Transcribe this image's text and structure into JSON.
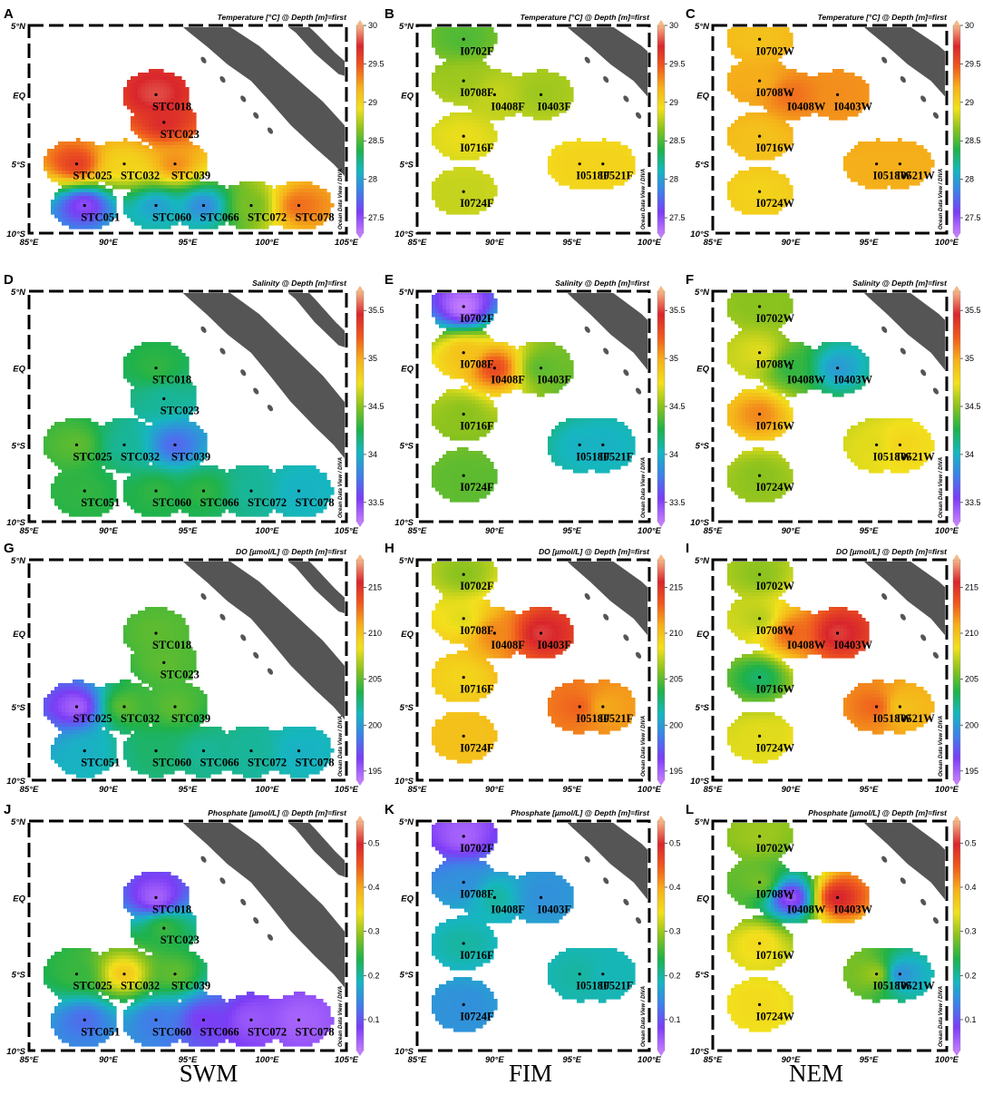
{
  "seasons": [
    "SWM",
    "FIM",
    "NEM"
  ],
  "watermark": "Ocean Data View / DIVA",
  "axes": {
    "lon_ticks": [
      "85°E",
      "90°E",
      "95°E",
      "100°E",
      "105°E"
    ],
    "lat_ticks": [
      "5°N",
      "EQ",
      "5°S",
      "10°S"
    ]
  },
  "colorscale": [
    "#c27bff",
    "#7b3df5",
    "#3f7fe8",
    "#16b6c0",
    "#1fb24a",
    "#8ac21e",
    "#f2e01c",
    "#f5b21a",
    "#ef5a1e",
    "#d9262c",
    "#f5b888"
  ],
  "variables": [
    {
      "title": "Temperature [°C] @ Depth [m]=first",
      "ticks": [
        "27.5",
        "28",
        "28.5",
        "29",
        "29.5",
        "30"
      ],
      "range": [
        27.3,
        30
      ]
    },
    {
      "title": "Salinity @ Depth [m]=first",
      "ticks": [
        "33.5",
        "34",
        "34.5",
        "35",
        "35.5"
      ],
      "range": [
        33.3,
        35.7
      ]
    },
    {
      "title": "DO [µmol/L] @ Depth [m]=first",
      "ticks": [
        "195",
        "200",
        "205",
        "210",
        "215"
      ],
      "range": [
        194,
        218
      ]
    },
    {
      "title": "Phosphate [µmol/L] @ Depth [m]=first",
      "ticks": [
        "0.1",
        "0.2",
        "0.3",
        "0.4",
        "0.5"
      ],
      "range": [
        0.03,
        0.55
      ]
    }
  ],
  "panels": [
    {
      "label": "A",
      "season": "SWM",
      "variable": 0,
      "lon_range": [
        85,
        105
      ],
      "stations": [
        {
          "name": "STC018",
          "lon": 93.0,
          "lat": 0.0,
          "v": 29.8
        },
        {
          "name": "STC023",
          "lon": 93.5,
          "lat": -2.0,
          "v": 29.7
        },
        {
          "name": "STC025",
          "lon": 88.0,
          "lat": -5.0,
          "v": 29.6
        },
        {
          "name": "STC032",
          "lon": 91.0,
          "lat": -5.0,
          "v": 29.0
        },
        {
          "name": "STC039",
          "lon": 94.2,
          "lat": -5.0,
          "v": 29.3
        },
        {
          "name": "STC051",
          "lon": 88.5,
          "lat": -8.0,
          "v": 27.5
        },
        {
          "name": "STC060",
          "lon": 93.0,
          "lat": -8.0,
          "v": 28.0
        },
        {
          "name": "STC066",
          "lon": 96.0,
          "lat": -8.0,
          "v": 27.9
        },
        {
          "name": "STC072",
          "lon": 99.0,
          "lat": -8.0,
          "v": 28.6
        },
        {
          "name": "STC078",
          "lon": 102.0,
          "lat": -8.0,
          "v": 29.4
        }
      ]
    },
    {
      "label": "B",
      "season": "FIM",
      "variable": 0,
      "lon_range": [
        85,
        100
      ],
      "stations": [
        {
          "name": "I0702F",
          "lon": 88.0,
          "lat": 4.0,
          "v": 28.5
        },
        {
          "name": "I0708F",
          "lon": 88.0,
          "lat": 1.0,
          "v": 28.7
        },
        {
          "name": "I0408F",
          "lon": 90.0,
          "lat": 0.0,
          "v": 28.8
        },
        {
          "name": "I0403F",
          "lon": 93.0,
          "lat": 0.0,
          "v": 28.7
        },
        {
          "name": "I0716F",
          "lon": 88.0,
          "lat": -3.0,
          "v": 28.9
        },
        {
          "name": "I0518F",
          "lon": 95.5,
          "lat": -5.0,
          "v": 29.0
        },
        {
          "name": "I0521F",
          "lon": 97.0,
          "lat": -5.0,
          "v": 29.0
        },
        {
          "name": "I0724F",
          "lon": 88.0,
          "lat": -7.0,
          "v": 28.8
        }
      ]
    },
    {
      "label": "C",
      "season": "NEM",
      "variable": 0,
      "lon_range": [
        85,
        100
      ],
      "stations": [
        {
          "name": "I0702W",
          "lon": 88.0,
          "lat": 4.0,
          "v": 29.1
        },
        {
          "name": "I0708W",
          "lon": 88.0,
          "lat": 1.0,
          "v": 29.2
        },
        {
          "name": "I0408W",
          "lon": 90.0,
          "lat": 0.0,
          "v": 29.4
        },
        {
          "name": "I0403W",
          "lon": 93.0,
          "lat": 0.0,
          "v": 29.3
        },
        {
          "name": "I0716W",
          "lon": 88.0,
          "lat": -3.0,
          "v": 29.1
        },
        {
          "name": "I0518W",
          "lon": 95.5,
          "lat": -5.0,
          "v": 29.2
        },
        {
          "name": "I0521W",
          "lon": 97.0,
          "lat": -5.0,
          "v": 29.2
        },
        {
          "name": "I0724W",
          "lon": 88.0,
          "lat": -7.0,
          "v": 29.0
        }
      ]
    },
    {
      "label": "D",
      "season": "SWM",
      "variable": 1,
      "lon_range": [
        85,
        105
      ],
      "stations": [
        {
          "name": "STC018",
          "lon": 93.0,
          "lat": 0.0,
          "v": 34.3
        },
        {
          "name": "STC023",
          "lon": 93.5,
          "lat": -2.0,
          "v": 34.1
        },
        {
          "name": "STC025",
          "lon": 88.0,
          "lat": -5.0,
          "v": 34.4
        },
        {
          "name": "STC032",
          "lon": 91.0,
          "lat": -5.0,
          "v": 34.1
        },
        {
          "name": "STC039",
          "lon": 94.2,
          "lat": -5.0,
          "v": 33.7
        },
        {
          "name": "STC051",
          "lon": 88.5,
          "lat": -8.0,
          "v": 34.3
        },
        {
          "name": "STC060",
          "lon": 93.0,
          "lat": -8.0,
          "v": 34.3
        },
        {
          "name": "STC066",
          "lon": 96.0,
          "lat": -8.0,
          "v": 34.3
        },
        {
          "name": "STC072",
          "lon": 99.0,
          "lat": -8.0,
          "v": 34.1
        },
        {
          "name": "STC078",
          "lon": 102.0,
          "lat": -8.0,
          "v": 34.0
        }
      ]
    },
    {
      "label": "E",
      "season": "FIM",
      "variable": 1,
      "lon_range": [
        85,
        100
      ],
      "stations": [
        {
          "name": "I0702F",
          "lon": 88.0,
          "lat": 4.0,
          "v": 33.3
        },
        {
          "name": "I0708F",
          "lon": 88.0,
          "lat": 1.0,
          "v": 34.9
        },
        {
          "name": "I0408F",
          "lon": 90.0,
          "lat": 0.0,
          "v": 35.3
        },
        {
          "name": "I0403F",
          "lon": 93.0,
          "lat": 0.0,
          "v": 34.4
        },
        {
          "name": "I0716F",
          "lon": 88.0,
          "lat": -3.0,
          "v": 34.5
        },
        {
          "name": "I0518F",
          "lon": 95.5,
          "lat": -5.0,
          "v": 34.0
        },
        {
          "name": "I0521F",
          "lon": 97.0,
          "lat": -5.0,
          "v": 34.0
        },
        {
          "name": "I0724F",
          "lon": 88.0,
          "lat": -7.0,
          "v": 34.4
        }
      ]
    },
    {
      "label": "F",
      "season": "NEM",
      "variable": 1,
      "lon_range": [
        85,
        100
      ],
      "stations": [
        {
          "name": "I0702W",
          "lon": 88.0,
          "lat": 4.0,
          "v": 34.5
        },
        {
          "name": "I0708W",
          "lon": 88.0,
          "lat": 1.0,
          "v": 34.7
        },
        {
          "name": "I0408W",
          "lon": 90.0,
          "lat": 0.0,
          "v": 34.3
        },
        {
          "name": "I0403W",
          "lon": 93.0,
          "lat": 0.0,
          "v": 33.9
        },
        {
          "name": "I0716W",
          "lon": 88.0,
          "lat": -3.0,
          "v": 35.1
        },
        {
          "name": "I0518W",
          "lon": 95.5,
          "lat": -5.0,
          "v": 34.7
        },
        {
          "name": "I0521W",
          "lon": 97.0,
          "lat": -5.0,
          "v": 34.8
        },
        {
          "name": "I0724W",
          "lon": 88.0,
          "lat": -7.0,
          "v": 34.5
        }
      ]
    },
    {
      "label": "G",
      "season": "SWM",
      "variable": 2,
      "lon_range": [
        85,
        105
      ],
      "stations": [
        {
          "name": "STC018",
          "lon": 93.0,
          "lat": 0.0,
          "v": 205
        },
        {
          "name": "STC023",
          "lon": 93.5,
          "lat": -2.0,
          "v": 205
        },
        {
          "name": "STC025",
          "lon": 88.0,
          "lat": -5.0,
          "v": 195
        },
        {
          "name": "STC032",
          "lon": 91.0,
          "lat": -5.0,
          "v": 205
        },
        {
          "name": "STC039",
          "lon": 94.2,
          "lat": -5.0,
          "v": 205
        },
        {
          "name": "STC051",
          "lon": 88.5,
          "lat": -8.0,
          "v": 201
        },
        {
          "name": "STC060",
          "lon": 93.0,
          "lat": -8.0,
          "v": 203
        },
        {
          "name": "STC066",
          "lon": 96.0,
          "lat": -8.0,
          "v": 202
        },
        {
          "name": "STC072",
          "lon": 99.0,
          "lat": -8.0,
          "v": 202
        },
        {
          "name": "STC078",
          "lon": 102.0,
          "lat": -8.0,
          "v": 201
        }
      ]
    },
    {
      "label": "H",
      "season": "FIM",
      "variable": 2,
      "lon_range": [
        85,
        100
      ],
      "stations": [
        {
          "name": "I0702F",
          "lon": 88.0,
          "lat": 4.0,
          "v": 206
        },
        {
          "name": "I0708F",
          "lon": 88.0,
          "lat": 1.0,
          "v": 208
        },
        {
          "name": "I0408F",
          "lon": 90.0,
          "lat": 0.0,
          "v": 212
        },
        {
          "name": "I0403F",
          "lon": 93.0,
          "lat": 0.0,
          "v": 216
        },
        {
          "name": "I0716F",
          "lon": 88.0,
          "lat": -3.0,
          "v": 209
        },
        {
          "name": "I0518F",
          "lon": 95.5,
          "lat": -5.0,
          "v": 213
        },
        {
          "name": "I0521F",
          "lon": 97.0,
          "lat": -5.0,
          "v": 211
        },
        {
          "name": "I0724F",
          "lon": 88.0,
          "lat": -7.0,
          "v": 210
        }
      ]
    },
    {
      "label": "I",
      "season": "NEM",
      "variable": 2,
      "lon_range": [
        85,
        100
      ],
      "stations": [
        {
          "name": "I0702W",
          "lon": 88.0,
          "lat": 4.0,
          "v": 206
        },
        {
          "name": "I0708W",
          "lon": 88.0,
          "lat": 1.0,
          "v": 207
        },
        {
          "name": "I0408W",
          "lon": 90.0,
          "lat": 0.0,
          "v": 213
        },
        {
          "name": "I0403W",
          "lon": 93.0,
          "lat": 0.0,
          "v": 216
        },
        {
          "name": "I0716W",
          "lon": 88.0,
          "lat": -3.0,
          "v": 203
        },
        {
          "name": "I0518W",
          "lon": 95.5,
          "lat": -5.0,
          "v": 213
        },
        {
          "name": "I0521W",
          "lon": 97.0,
          "lat": -5.0,
          "v": 210
        },
        {
          "name": "I0724W",
          "lon": 88.0,
          "lat": -7.0,
          "v": 208
        }
      ]
    },
    {
      "label": "J",
      "season": "SWM",
      "variable": 3,
      "lon_range": [
        85,
        105
      ],
      "stations": [
        {
          "name": "STC018",
          "lon": 93.0,
          "lat": 0.0,
          "v": 0.05
        },
        {
          "name": "STC023",
          "lon": 93.5,
          "lat": -2.0,
          "v": 0.25
        },
        {
          "name": "STC025",
          "lon": 88.0,
          "lat": -5.0,
          "v": 0.25
        },
        {
          "name": "STC032",
          "lon": 91.0,
          "lat": -5.0,
          "v": 0.37
        },
        {
          "name": "STC039",
          "lon": 94.2,
          "lat": -5.0,
          "v": 0.27
        },
        {
          "name": "STC051",
          "lon": 88.5,
          "lat": -8.0,
          "v": 0.12
        },
        {
          "name": "STC060",
          "lon": 93.0,
          "lat": -8.0,
          "v": 0.13
        },
        {
          "name": "STC066",
          "lon": 96.0,
          "lat": -8.0,
          "v": 0.08
        },
        {
          "name": "STC072",
          "lon": 99.0,
          "lat": -8.0,
          "v": 0.06
        },
        {
          "name": "STC078",
          "lon": 102.0,
          "lat": -8.0,
          "v": 0.05
        }
      ]
    },
    {
      "label": "K",
      "season": "FIM",
      "variable": 3,
      "lon_range": [
        85,
        100
      ],
      "stations": [
        {
          "name": "I0702F",
          "lon": 88.0,
          "lat": 4.0,
          "v": 0.05
        },
        {
          "name": "I0708F",
          "lon": 88.0,
          "lat": 1.0,
          "v": 0.15
        },
        {
          "name": "I0408F",
          "lon": 90.0,
          "lat": 0.0,
          "v": 0.2
        },
        {
          "name": "I0403F",
          "lon": 93.0,
          "lat": 0.0,
          "v": 0.15
        },
        {
          "name": "I0716F",
          "lon": 88.0,
          "lat": -3.0,
          "v": 0.2
        },
        {
          "name": "I0518F",
          "lon": 95.5,
          "lat": -5.0,
          "v": 0.2
        },
        {
          "name": "I0521F",
          "lon": 97.0,
          "lat": -5.0,
          "v": 0.19
        },
        {
          "name": "I0724F",
          "lon": 88.0,
          "lat": -7.0,
          "v": 0.15
        }
      ]
    },
    {
      "label": "L",
      "season": "NEM",
      "variable": 3,
      "lon_range": [
        85,
        100
      ],
      "stations": [
        {
          "name": "I0702W",
          "lon": 88.0,
          "lat": 4.0,
          "v": 0.3
        },
        {
          "name": "I0708W",
          "lon": 88.0,
          "lat": 1.0,
          "v": 0.28
        },
        {
          "name": "I0408W",
          "lon": 90.0,
          "lat": 0.0,
          "v": 0.06
        },
        {
          "name": "I0403W",
          "lon": 93.0,
          "lat": 0.0,
          "v": 0.5
        },
        {
          "name": "I0716W",
          "lon": 88.0,
          "lat": -3.0,
          "v": 0.35
        },
        {
          "name": "I0518W",
          "lon": 95.5,
          "lat": -5.0,
          "v": 0.3
        },
        {
          "name": "I0521W",
          "lon": 97.0,
          "lat": -5.0,
          "v": 0.15
        },
        {
          "name": "I0724W",
          "lon": 88.0,
          "lat": -7.0,
          "v": 0.35
        }
      ]
    }
  ],
  "chart_data": {
    "type": "heatmap",
    "x_unit": "longitude (°E)",
    "y_unit": "latitude",
    "lat_range": [
      -10,
      5
    ],
    "rows": [
      "Temperature [°C] @ Depth [m]=first",
      "Salinity @ Depth [m]=first",
      "DO [µmol/L] @ Depth [m]=first",
      "Phosphate [µmol/L] @ Depth [m]=first"
    ],
    "columns": [
      "SWM",
      "FIM",
      "NEM"
    ],
    "note_panels": "station values per panel are listed under panels[]"
  }
}
